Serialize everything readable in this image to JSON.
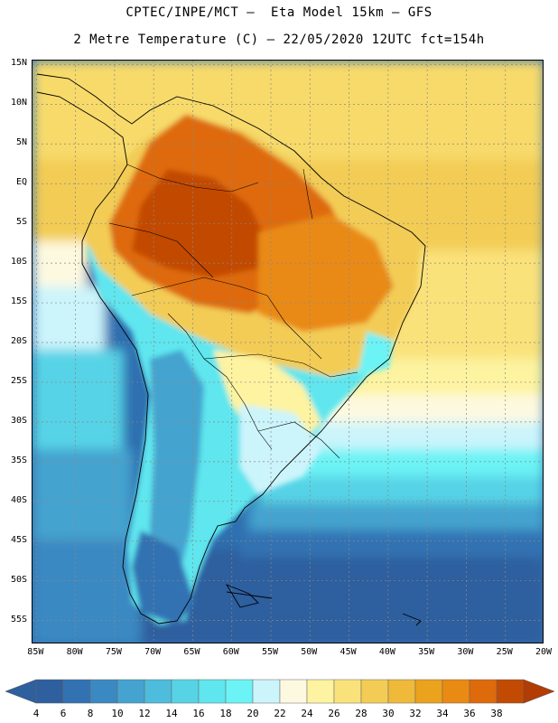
{
  "header": {
    "title_line1": "CPTEC/INPE/MCT –  Eta Model 15km – GFS",
    "title_line2": "2 Metre Temperature (C) – 22/05/2020 12UTC fct=154h"
  },
  "map": {
    "lat_labels": [
      "15N",
      "10N",
      "5N",
      "EQ",
      "5S",
      "10S",
      "15S",
      "20S",
      "25S",
      "30S",
      "35S",
      "40S",
      "45S",
      "50S",
      "55S"
    ],
    "lon_labels": [
      "85W",
      "80W",
      "75W",
      "70W",
      "65W",
      "60W",
      "55W",
      "50W",
      "45W",
      "40W",
      "35W",
      "30W",
      "25W",
      "20W"
    ],
    "lat_range": [
      15.5,
      -58
    ],
    "lon_range": [
      -85.5,
      -20
    ]
  },
  "colorbar": {
    "labels": [
      "4",
      "6",
      "8",
      "10",
      "12",
      "14",
      "16",
      "18",
      "20",
      "22",
      "24",
      "26",
      "28",
      "30",
      "32",
      "34",
      "36",
      "38"
    ],
    "colors": [
      "#2e5f9e",
      "#3272b3",
      "#3b89c2",
      "#44a3cf",
      "#4ebcdc",
      "#57d3e6",
      "#5fe6ee",
      "#6cf3f5",
      "#ccf4fb",
      "#fdf9e0",
      "#fdf3a0",
      "#fae27a",
      "#f3cc55",
      "#efb93a",
      "#eba21c",
      "#e98a12",
      "#de6a0c",
      "#c24a03"
    ],
    "left_arrow_color": "#2e5f9e",
    "right_arrow_color": "#b23c04"
  }
}
